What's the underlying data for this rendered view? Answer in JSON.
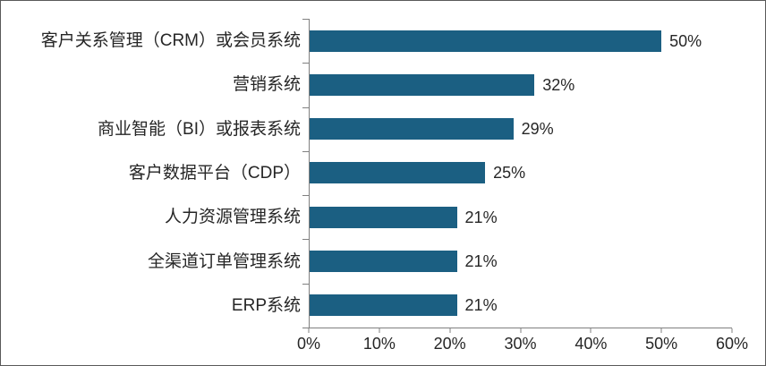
{
  "window": {
    "background": "#FFFFFF",
    "border_color": "#595959"
  },
  "chart_data": {
    "type": "bar",
    "orientation": "horizontal",
    "title": "",
    "categories": [
      "客户关系管理（CRM）或会员系统",
      "营销系统",
      "商业智能（BI）或报表系统",
      "客户数据平台（CDP）",
      "人力资源管理系统",
      "全渠道订单管理系统",
      "ERP系统"
    ],
    "values": [
      50,
      32,
      29,
      25,
      21,
      21,
      21
    ],
    "value_labels": [
      "50%",
      "32%",
      "29%",
      "25%",
      "21%",
      "21%",
      "21%"
    ],
    "x_tick_labels": [
      "0%",
      "10%",
      "20%",
      "30%",
      "40%",
      "50%",
      "60%"
    ],
    "xlim": [
      0,
      60
    ],
    "grid": false,
    "legend": false,
    "bar_color": "#1B5F82",
    "axis_color": "#808080",
    "text_color": "#262626"
  }
}
